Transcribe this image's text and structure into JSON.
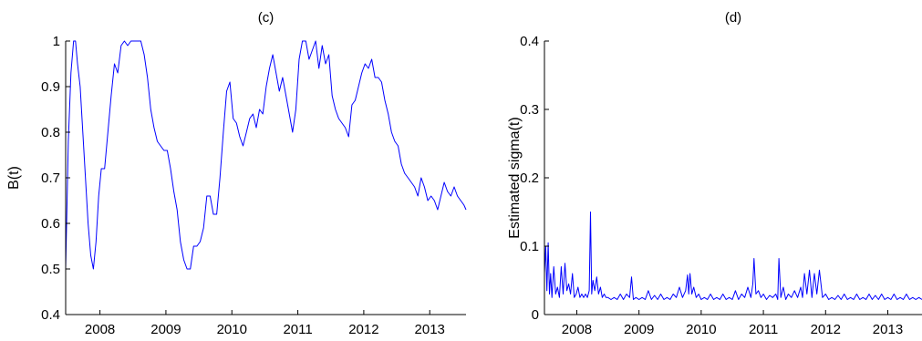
{
  "chart_data": [
    {
      "type": "line",
      "title": "(c)",
      "xlabel": "",
      "ylabel": "B(t)",
      "xlim": [
        2007.48,
        2013.55
      ],
      "ylim": [
        0.4,
        1.0
      ],
      "xticks": [
        2008,
        2009,
        2010,
        2011,
        2012,
        2013
      ],
      "xtick_labels": [
        "2008",
        "2009",
        "2010",
        "2011",
        "2012",
        "2013"
      ],
      "yticks": [
        0.4,
        0.5,
        0.6,
        0.7,
        0.8,
        0.9,
        1.0
      ],
      "ytick_labels": [
        "0.4",
        "0.5",
        "0.6",
        "0.7",
        "0.8",
        "0.9",
        "1"
      ],
      "grid": false,
      "line_color": "#0000ff",
      "series": [
        {
          "x": [
            2007.48,
            2007.52,
            2007.56,
            2007.6,
            2007.63,
            2007.66,
            2007.7,
            2007.74,
            2007.78,
            2007.82,
            2007.86,
            2007.9,
            2007.94,
            2007.98,
            2008.02,
            2008.07,
            2008.12,
            2008.17,
            2008.22,
            2008.27,
            2008.32,
            2008.37,
            2008.42,
            2008.47,
            2008.52,
            2008.57,
            2008.62,
            2008.67,
            2008.72,
            2008.77,
            2008.82,
            2008.87,
            2008.92,
            2008.97,
            2009.02,
            2009.07,
            2009.12,
            2009.17,
            2009.22,
            2009.27,
            2009.32,
            2009.37,
            2009.42,
            2009.47,
            2009.52,
            2009.57,
            2009.62,
            2009.67,
            2009.72,
            2009.77,
            2009.82,
            2009.87,
            2009.92,
            2009.97,
            2010.02,
            2010.07,
            2010.12,
            2010.17,
            2010.22,
            2010.27,
            2010.32,
            2010.37,
            2010.42,
            2010.47,
            2010.52,
            2010.57,
            2010.62,
            2010.67,
            2010.72,
            2010.77,
            2010.82,
            2010.87,
            2010.92,
            2010.97,
            2011.02,
            2011.07,
            2011.12,
            2011.17,
            2011.22,
            2011.27,
            2011.32,
            2011.37,
            2011.42,
            2011.47,
            2011.52,
            2011.57,
            2011.62,
            2011.67,
            2011.72,
            2011.77,
            2011.82,
            2011.87,
            2011.92,
            2011.97,
            2012.02,
            2012.07,
            2012.12,
            2012.17,
            2012.22,
            2012.27,
            2012.32,
            2012.37,
            2012.42,
            2012.47,
            2012.52,
            2012.57,
            2012.62,
            2012.67,
            2012.72,
            2012.77,
            2012.82,
            2012.87,
            2012.92,
            2012.97,
            2013.02,
            2013.07,
            2013.12,
            2013.17,
            2013.22,
            2013.27,
            2013.32,
            2013.37,
            2013.42,
            2013.47,
            2013.52,
            2013.55
          ],
          "y": [
            0.5,
            0.78,
            0.93,
            1.0,
            1.0,
            0.95,
            0.9,
            0.8,
            0.7,
            0.6,
            0.53,
            0.5,
            0.56,
            0.66,
            0.72,
            0.72,
            0.8,
            0.88,
            0.95,
            0.93,
            0.99,
            1.0,
            0.99,
            1.0,
            1.0,
            1.0,
            1.0,
            0.97,
            0.92,
            0.85,
            0.81,
            0.78,
            0.77,
            0.76,
            0.76,
            0.72,
            0.67,
            0.63,
            0.56,
            0.52,
            0.5,
            0.5,
            0.55,
            0.55,
            0.56,
            0.59,
            0.66,
            0.66,
            0.62,
            0.62,
            0.7,
            0.8,
            0.89,
            0.91,
            0.83,
            0.82,
            0.79,
            0.77,
            0.8,
            0.83,
            0.84,
            0.81,
            0.85,
            0.84,
            0.9,
            0.94,
            0.97,
            0.93,
            0.89,
            0.92,
            0.88,
            0.84,
            0.8,
            0.85,
            0.96,
            1.0,
            1.0,
            0.96,
            0.98,
            1.0,
            0.94,
            0.99,
            0.95,
            0.97,
            0.88,
            0.85,
            0.83,
            0.82,
            0.81,
            0.79,
            0.86,
            0.87,
            0.9,
            0.93,
            0.95,
            0.94,
            0.96,
            0.92,
            0.92,
            0.91,
            0.87,
            0.84,
            0.8,
            0.78,
            0.77,
            0.73,
            0.71,
            0.7,
            0.69,
            0.68,
            0.66,
            0.7,
            0.68,
            0.65,
            0.66,
            0.65,
            0.63,
            0.66,
            0.69,
            0.67,
            0.66,
            0.68,
            0.66,
            0.65,
            0.64,
            0.63
          ]
        }
      ]
    },
    {
      "type": "line",
      "title": "(d)",
      "xlabel": "",
      "ylabel": "Estimated sigma(t)",
      "xlim": [
        2007.48,
        2013.55
      ],
      "ylim": [
        0,
        0.4
      ],
      "xticks": [
        2008,
        2009,
        2010,
        2011,
        2012,
        2013
      ],
      "xtick_labels": [
        "2008",
        "2009",
        "2010",
        "2011",
        "2012",
        "2013"
      ],
      "yticks": [
        0,
        0.1,
        0.2,
        0.3,
        0.4
      ],
      "ytick_labels": [
        "0",
        "0.1",
        "0.2",
        "0.3",
        "0.4"
      ],
      "grid": false,
      "line_color": "#0000ff",
      "series": [
        {
          "x": [
            2007.48,
            2007.5,
            2007.52,
            2007.54,
            2007.56,
            2007.58,
            2007.6,
            2007.63,
            2007.66,
            2007.69,
            2007.72,
            2007.75,
            2007.78,
            2007.81,
            2007.84,
            2007.87,
            2007.9,
            2007.93,
            2007.96,
            2007.99,
            2008.02,
            2008.05,
            2008.08,
            2008.11,
            2008.14,
            2008.17,
            2008.2,
            2008.22,
            2008.24,
            2008.26,
            2008.29,
            2008.32,
            2008.35,
            2008.38,
            2008.41,
            2008.44,
            2008.47,
            2008.5,
            2008.55,
            2008.6,
            2008.65,
            2008.7,
            2008.75,
            2008.8,
            2008.85,
            2008.88,
            2008.91,
            2008.95,
            2009.0,
            2009.05,
            2009.1,
            2009.15,
            2009.2,
            2009.25,
            2009.3,
            2009.35,
            2009.4,
            2009.45,
            2009.5,
            2009.55,
            2009.6,
            2009.65,
            2009.7,
            2009.75,
            2009.78,
            2009.8,
            2009.82,
            2009.85,
            2009.88,
            2009.92,
            2009.96,
            2010.0,
            2010.05,
            2010.1,
            2010.15,
            2010.2,
            2010.25,
            2010.3,
            2010.35,
            2010.4,
            2010.45,
            2010.5,
            2010.55,
            2010.6,
            2010.65,
            2010.7,
            2010.75,
            2010.8,
            2010.83,
            2010.85,
            2010.88,
            2010.92,
            2010.96,
            2011.0,
            2011.05,
            2011.1,
            2011.15,
            2011.2,
            2011.23,
            2011.25,
            2011.28,
            2011.32,
            2011.36,
            2011.4,
            2011.45,
            2011.5,
            2011.55,
            2011.6,
            2011.63,
            2011.66,
            2011.7,
            2011.74,
            2011.78,
            2011.82,
            2011.86,
            2011.9,
            2011.95,
            2012.0,
            2012.05,
            2012.1,
            2012.15,
            2012.2,
            2012.25,
            2012.3,
            2012.35,
            2012.4,
            2012.45,
            2012.5,
            2012.55,
            2012.6,
            2012.65,
            2012.7,
            2012.75,
            2012.8,
            2012.85,
            2012.9,
            2012.95,
            2013.0,
            2013.05,
            2013.1,
            2013.15,
            2013.2,
            2013.25,
            2013.3,
            2013.35,
            2013.4,
            2013.45,
            2013.5,
            2013.55
          ],
          "y": [
            0.06,
            0.1,
            0.035,
            0.105,
            0.03,
            0.06,
            0.025,
            0.07,
            0.03,
            0.04,
            0.025,
            0.07,
            0.03,
            0.075,
            0.035,
            0.045,
            0.03,
            0.06,
            0.025,
            0.03,
            0.04,
            0.025,
            0.03,
            0.025,
            0.03,
            0.025,
            0.035,
            0.15,
            0.03,
            0.05,
            0.035,
            0.055,
            0.03,
            0.04,
            0.025,
            0.03,
            0.025,
            0.025,
            0.022,
            0.025,
            0.022,
            0.03,
            0.022,
            0.03,
            0.025,
            0.055,
            0.022,
            0.025,
            0.022,
            0.025,
            0.022,
            0.035,
            0.022,
            0.028,
            0.022,
            0.03,
            0.022,
            0.025,
            0.022,
            0.03,
            0.025,
            0.04,
            0.025,
            0.035,
            0.058,
            0.03,
            0.06,
            0.03,
            0.04,
            0.025,
            0.03,
            0.022,
            0.025,
            0.022,
            0.03,
            0.022,
            0.025,
            0.022,
            0.03,
            0.022,
            0.025,
            0.022,
            0.035,
            0.022,
            0.03,
            0.025,
            0.04,
            0.025,
            0.045,
            0.082,
            0.03,
            0.035,
            0.025,
            0.03,
            0.022,
            0.028,
            0.025,
            0.03,
            0.022,
            0.082,
            0.025,
            0.04,
            0.022,
            0.03,
            0.025,
            0.035,
            0.025,
            0.04,
            0.025,
            0.06,
            0.03,
            0.065,
            0.025,
            0.06,
            0.03,
            0.065,
            0.025,
            0.03,
            0.022,
            0.025,
            0.022,
            0.028,
            0.022,
            0.03,
            0.022,
            0.025,
            0.022,
            0.03,
            0.022,
            0.025,
            0.022,
            0.03,
            0.022,
            0.028,
            0.022,
            0.03,
            0.022,
            0.025,
            0.022,
            0.03,
            0.022,
            0.025,
            0.022,
            0.03,
            0.022,
            0.025,
            0.022,
            0.025,
            0.022
          ]
        }
      ]
    }
  ]
}
